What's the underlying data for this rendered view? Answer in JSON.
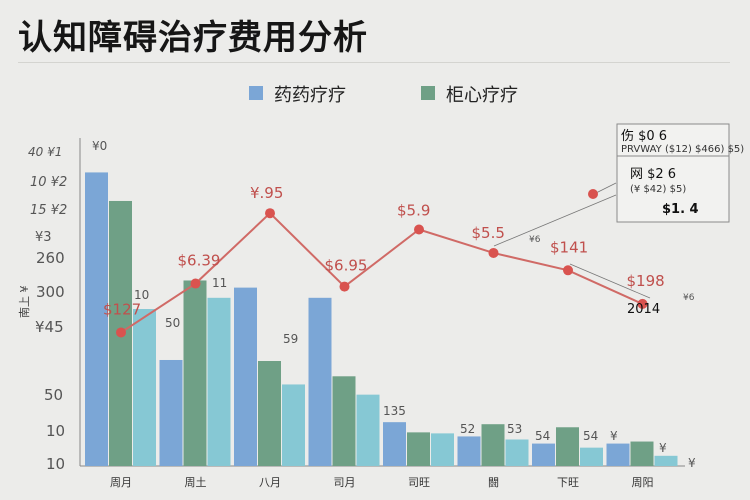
{
  "title": "认知障碍治疗费用分析",
  "chart_data": {
    "type": "bar",
    "title": "认知障碍治疗费用分析",
    "xlabel": "",
    "ylabel": "南上 ¥",
    "ylim": [
      0,
      310
    ],
    "y_ticks": [
      "¥0",
      "40 ¥1",
      "10 ¥2",
      "15 ¥2",
      "¥3",
      "260",
      "300",
      "¥45",
      "50",
      "10",
      "10"
    ],
    "categories": [
      "周月",
      "周土",
      "八月",
      "司月",
      "司旺",
      "闘",
      "下旺",
      "周阳"
    ],
    "series": [
      {
        "name": "药药疗疗",
        "color": "#7ba6d6",
        "values": [
          288,
          104,
          175,
          165,
          43,
          29,
          22,
          22
        ]
      },
      {
        "name": "",
        "color": "#6fa086",
        "values": [
          260,
          182,
          103,
          88,
          33,
          41,
          38,
          24
        ]
      },
      {
        "name": "",
        "color": "#86c8d4",
        "values": [
          154,
          165,
          80,
          70,
          32,
          26,
          18,
          10
        ]
      }
    ],
    "line": {
      "color": "#d06a66",
      "values": [
        131,
        179,
        248,
        176,
        232,
        209,
        192,
        159
      ],
      "labels": [
        "$127",
        "$6.39",
        "¥.95",
        "$6.95",
        "$5.9",
        "$5.5",
        "$141",
        "$198"
      ]
    },
    "bar_labels": [
      "¥0",
      "10",
      "50",
      "11",
      "59",
      "135",
      "52",
      "53",
      "54",
      "54",
      "¥",
      "¥"
    ],
    "legend": [
      {
        "label": "药药疗疗",
        "color": "#7ba6d6"
      },
      {
        "label": "柜心疗疗",
        "color": "#6fa086"
      }
    ],
    "extra_labels": [
      "2014",
      "¥6",
      "¥6"
    ],
    "x_axis_end": "¥"
  },
  "annotation": {
    "line1": "伤 $0 6",
    "line2": "PRVWAY ($12) $466) $5)",
    "line3": "网 $2 6",
    "line4": "(¥ $42) $5)",
    "line5": "$1. 4"
  }
}
